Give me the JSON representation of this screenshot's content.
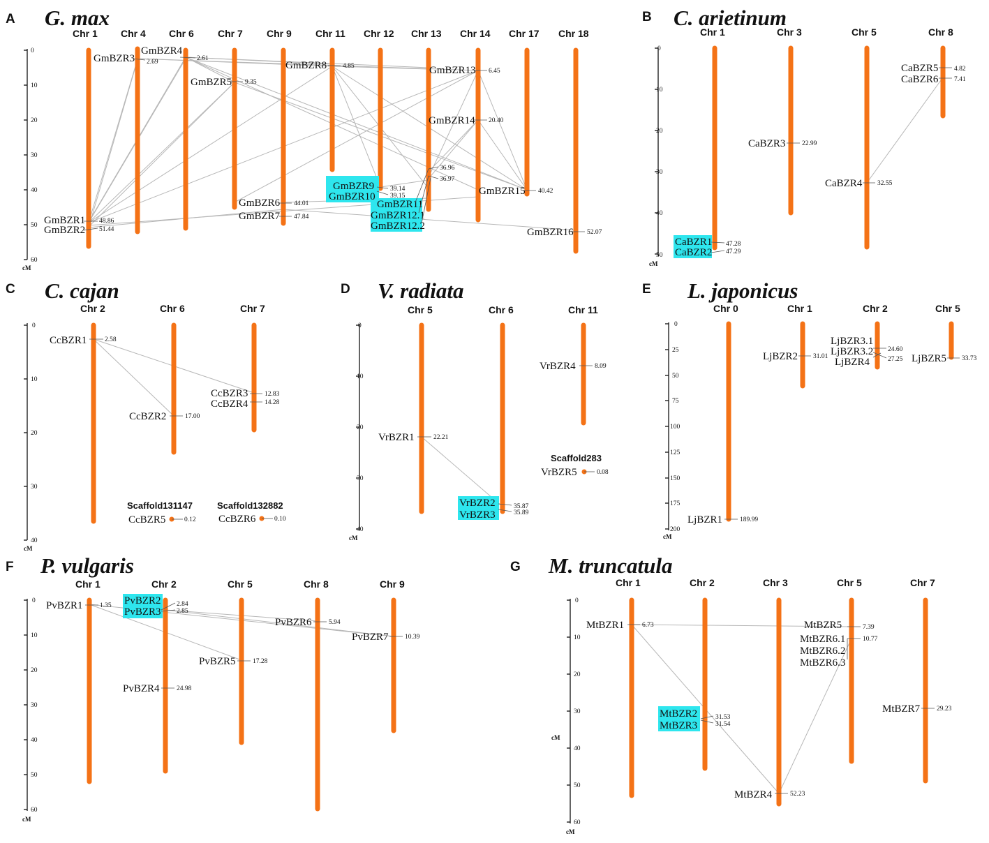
{
  "figure": {
    "panels": {
      "A": {
        "letter": "A",
        "species": "G. max",
        "chromosomes": [
          "Chr 1",
          "Chr 4",
          "Chr 6",
          "Chr 7",
          "Chr 9",
          "Chr 11",
          "Chr 12",
          "Chr 13",
          "Chr 14",
          "Chr 17",
          "Chr 18"
        ],
        "ticks": [
          "0",
          "10",
          "20",
          "30",
          "40",
          "50",
          "60"
        ],
        "unit": "cM",
        "genes": [
          {
            "name": "GmBZR1",
            "pos": "48.86"
          },
          {
            "name": "GmBZR2",
            "pos": "51.44"
          },
          {
            "name": "GmBZR3",
            "pos": "2.69"
          },
          {
            "name": "GmBZR4",
            "pos": "2.61"
          },
          {
            "name": "GmBZR5",
            "pos": "9.35"
          },
          {
            "name": "GmBZR6",
            "pos": "44.01"
          },
          {
            "name": "GmBZR7",
            "pos": "47.84"
          },
          {
            "name": "GmBZR8",
            "pos": "4.85"
          },
          {
            "name": "GmBZR9",
            "pos": "39.14"
          },
          {
            "name": "GmBZR10",
            "pos": "39.15"
          },
          {
            "name": "GmBZR11",
            "pos": "36.96"
          },
          {
            "name": "GmBZR12.1",
            "pos": "36.97"
          },
          {
            "name": "GmBZR12.2",
            "pos": ""
          },
          {
            "name": "GmBZR13",
            "pos": "6.45"
          },
          {
            "name": "GmBZR14",
            "pos": "20.40"
          },
          {
            "name": "GmBZR15",
            "pos": "40.42"
          },
          {
            "name": "GmBZR16",
            "pos": "52.07"
          }
        ]
      },
      "B": {
        "letter": "B",
        "species": "C. arietinum",
        "chromosomes": [
          "Chr 1",
          "Chr 3",
          "Chr 5",
          "Chr 8"
        ],
        "ticks": [
          "0",
          "10",
          "20",
          "30",
          "40",
          "50"
        ],
        "unit": "cM",
        "genes": [
          {
            "name": "CaBZR1",
            "pos": "47.28"
          },
          {
            "name": "CaBZR2",
            "pos": "47.29"
          },
          {
            "name": "CaBZR3",
            "pos": "22.99"
          },
          {
            "name": "CaBZR4",
            "pos": "32.55"
          },
          {
            "name": "CaBZR5",
            "pos": "4.82"
          },
          {
            "name": "CaBZR6",
            "pos": "7.41"
          }
        ]
      },
      "C": {
        "letter": "C",
        "species": "C. cajan",
        "chromosomes": [
          "Chr 2",
          "Chr 6",
          "Chr 7"
        ],
        "scaffolds": [
          "Scaffold131147",
          "Scaffold132882"
        ],
        "ticks": [
          "0",
          "10",
          "20",
          "30",
          "40"
        ],
        "unit": "cM",
        "genes": [
          {
            "name": "CcBZR1",
            "pos": "2.58"
          },
          {
            "name": "CcBZR2",
            "pos": "17.00"
          },
          {
            "name": "CcBZR3",
            "pos": "12.83"
          },
          {
            "name": "CcBZR4",
            "pos": "14.28"
          },
          {
            "name": "CcBZR5",
            "pos": "0.12"
          },
          {
            "name": "CcBZR6",
            "pos": "0.10"
          }
        ]
      },
      "D": {
        "letter": "D",
        "species": "V. radiata",
        "chromosomes": [
          "Chr 5",
          "Chr 6",
          "Chr 11"
        ],
        "scaffolds": [
          "Scaffold283"
        ],
        "ticks": [
          "0",
          "10",
          "20",
          "30",
          "40"
        ],
        "unit": "cM",
        "genes": [
          {
            "name": "VrBZR1",
            "pos": "22.21"
          },
          {
            "name": "VrBZR2",
            "pos": "35.87"
          },
          {
            "name": "VrBZR3",
            "pos": "35.89"
          },
          {
            "name": "VrBZR4",
            "pos": "8.09"
          },
          {
            "name": "VrBZR5",
            "pos": "0.08"
          }
        ]
      },
      "E": {
        "letter": "E",
        "species": "L. japonicus",
        "chromosomes": [
          "Chr 0",
          "Chr 1",
          "Chr 2",
          "Chr 5"
        ],
        "ticks": [
          "0",
          "25",
          "50",
          "75",
          "100",
          "125",
          "150",
          "175",
          "200"
        ],
        "unit": "cM",
        "genes": [
          {
            "name": "LjBZR1",
            "pos": "189.99"
          },
          {
            "name": "LjBZR2",
            "pos": "31.01"
          },
          {
            "name": "LjBZR3.1",
            "pos": "24.60"
          },
          {
            "name": "LjBZR3.2",
            "pos": "27.25"
          },
          {
            "name": "LjBZR4",
            "pos": ""
          },
          {
            "name": "LjBZR5",
            "pos": "33.73"
          }
        ]
      },
      "F": {
        "letter": "F",
        "species": "P. vulgaris",
        "chromosomes": [
          "Chr 1",
          "Chr 2",
          "Chr 5",
          "Chr 8",
          "Chr 9"
        ],
        "ticks": [
          "0",
          "10",
          "20",
          "30",
          "40",
          "50",
          "60"
        ],
        "unit": "cM",
        "genes": [
          {
            "name": "PvBZR1",
            "pos": "1.35"
          },
          {
            "name": "PvBZR2",
            "pos": "2.84"
          },
          {
            "name": "PvBZR3",
            "pos": "2.85"
          },
          {
            "name": "PvBZR4",
            "pos": "24.98"
          },
          {
            "name": "PvBZR5",
            "pos": "17.28"
          },
          {
            "name": "PvBZR6",
            "pos": "5.94"
          },
          {
            "name": "PvBZR7",
            "pos": "10.39"
          }
        ]
      },
      "G": {
        "letter": "G",
        "species": "M. truncatula",
        "chromosomes": [
          "Chr 1",
          "Chr 2",
          "Chr 3",
          "Chr 5",
          "Chr 7"
        ],
        "ticks": [
          "0",
          "10",
          "20",
          "30",
          "40",
          "50",
          "60"
        ],
        "unit": "cM",
        "genes": [
          {
            "name": "MtBZR1",
            "pos": "6.73"
          },
          {
            "name": "MtBZR2",
            "pos": "31.53"
          },
          {
            "name": "MtBZR3",
            "pos": "31.54"
          },
          {
            "name": "MtBZR4",
            "pos": "52.23"
          },
          {
            "name": "MtBZR5",
            "pos": "7.39"
          },
          {
            "name": "MtBZR6.1",
            "pos": "10.77"
          },
          {
            "name": "MtBZR6.2",
            "pos": ""
          },
          {
            "name": "MtBZR6.3",
            "pos": ""
          },
          {
            "name": "MtBZR7",
            "pos": "29.23"
          }
        ]
      }
    },
    "colors": {
      "chromosome": "#f47216",
      "highlight": "#2ee6ee",
      "link": "#b7b7b7"
    }
  }
}
